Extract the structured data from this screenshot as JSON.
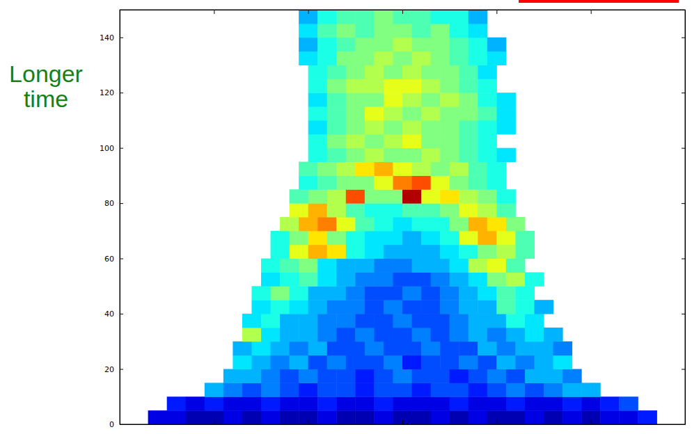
{
  "chart_data": {
    "type": "heatmap",
    "ylabel": "Longer time",
    "xlim": [
      0,
      6
    ],
    "xticks": [
      1,
      2,
      3,
      4,
      5
    ],
    "ylim": [
      0,
      150
    ],
    "yticks": [
      0,
      20,
      40,
      60,
      80,
      100,
      120,
      140
    ],
    "tick_labels": "y",
    "color_range": [
      0,
      10
    ],
    "dx": 0.2,
    "dy": 5,
    "rows": [
      {
        "y": 0,
        "x": 0.3,
        "values": [
          1,
          1,
          0.5,
          0.5,
          1,
          0.5,
          1,
          0.5,
          0.5,
          1,
          0.5,
          0.5,
          1,
          0.5,
          0.5,
          1,
          0.5,
          1,
          0.5,
          0.5,
          1,
          0.5,
          1,
          0.5,
          1,
          1,
          1.5
        ]
      },
      {
        "y": 5,
        "x": 0.5,
        "values": [
          1.5,
          1,
          1.5,
          1,
          1,
          1.5,
          1,
          1,
          1.5,
          1,
          1,
          1.5,
          1,
          1,
          1,
          1.5,
          1,
          1,
          1.5,
          1,
          1,
          1.5,
          1,
          1.5,
          2
        ]
      },
      {
        "y": 10,
        "x": 0.9,
        "values": [
          3,
          2.5,
          2,
          2.5,
          2,
          1.5,
          2,
          2,
          1.5,
          2,
          2,
          1.5,
          2,
          2,
          1.5,
          2,
          2.5,
          2,
          2.5,
          3,
          3
        ]
      },
      {
        "y": 15,
        "x": 1.1,
        "values": [
          3,
          3,
          2.5,
          2,
          2.5,
          2,
          2,
          1.5,
          2,
          2.5,
          2,
          2,
          1.5,
          2,
          2.5,
          2,
          3,
          3,
          2.5
        ]
      },
      {
        "y": 20,
        "x": 1.2,
        "values": [
          3.5,
          3,
          2.5,
          3,
          2,
          2.5,
          2,
          2,
          2.5,
          1.5,
          2,
          2,
          2.5,
          2,
          3,
          2.5,
          3,
          3.5
        ]
      },
      {
        "y": 25,
        "x": 1.2,
        "values": [
          3,
          3.5,
          3,
          2.5,
          3,
          2,
          2,
          2.5,
          2,
          2,
          2.5,
          2,
          2,
          3,
          2.5,
          3,
          3,
          2.5
        ]
      },
      {
        "y": 30,
        "x": 1.3,
        "values": [
          5.5,
          3.5,
          3,
          3,
          2.5,
          2,
          2.5,
          2,
          2,
          2.5,
          2,
          2.5,
          3,
          2.5,
          3,
          3.5,
          3
        ]
      },
      {
        "y": 35,
        "x": 1.3,
        "values": [
          3.5,
          4,
          3,
          3,
          2.5,
          2.5,
          2,
          2,
          2.5,
          2,
          2,
          2.5,
          3,
          3,
          4,
          3.5
        ]
      },
      {
        "y": 40,
        "x": 1.4,
        "values": [
          3.5,
          4,
          3.5,
          3,
          2.5,
          2.5,
          2,
          2.5,
          2,
          2,
          2.5,
          3,
          3,
          4.5,
          4,
          3
        ]
      },
      {
        "y": 45,
        "x": 1.4,
        "values": [
          4,
          5,
          4,
          3,
          3,
          2.5,
          2,
          2,
          2.5,
          2,
          2.5,
          3,
          3.5,
          4.5,
          4
        ]
      },
      {
        "y": 50,
        "x": 1.5,
        "values": [
          3.5,
          4,
          4.5,
          3.5,
          3,
          2.5,
          2.5,
          2,
          2,
          2.5,
          3,
          3.5,
          5,
          5.5,
          4
        ]
      },
      {
        "y": 55,
        "x": 1.5,
        "values": [
          4,
          4.5,
          5,
          3.5,
          3,
          3,
          2.5,
          2.5,
          3,
          3,
          3.5,
          5.5,
          6,
          4.5
        ]
      },
      {
        "y": 60,
        "x": 1.6,
        "values": [
          4,
          6,
          7,
          6.5,
          4,
          3.5,
          3,
          3,
          3,
          3.5,
          4,
          5,
          5.5,
          4.5
        ]
      },
      {
        "y": 65,
        "x": 1.6,
        "values": [
          4,
          5,
          6.5,
          5,
          4,
          3.5,
          3.5,
          3,
          3.5,
          4,
          6,
          7,
          6,
          4.5
        ]
      },
      {
        "y": 70,
        "x": 1.7,
        "values": [
          5.5,
          7,
          7.5,
          6,
          4.5,
          4,
          3.5,
          4,
          4,
          5,
          7,
          6.5,
          5
        ]
      },
      {
        "y": 75,
        "x": 1.8,
        "values": [
          6,
          7,
          5.5,
          4.5,
          4,
          4,
          4.5,
          4.5,
          5,
          6,
          5.5,
          4.5
        ]
      },
      {
        "y": 80,
        "x": 1.8,
        "values": [
          4.5,
          5,
          5.5,
          8,
          5,
          5,
          9.5,
          6,
          6.5,
          5.5,
          5,
          4
        ]
      },
      {
        "y": 85,
        "x": 1.9,
        "values": [
          4,
          4.5,
          5,
          5,
          6,
          7.5,
          8,
          6,
          5,
          4.5,
          4
        ]
      },
      {
        "y": 90,
        "x": 1.9,
        "values": [
          4.5,
          5,
          5.5,
          6.5,
          7,
          6,
          5.5,
          5,
          5.5,
          4.5,
          4
        ]
      },
      {
        "y": 95,
        "x": 2.0,
        "values": [
          4,
          4.5,
          5,
          5.5,
          5,
          5,
          5.5,
          5,
          4.5,
          4,
          3.5
        ]
      },
      {
        "y": 100,
        "x": 2.0,
        "values": [
          4,
          5,
          5.5,
          5,
          5.5,
          6,
          5,
          5,
          4.5,
          4
        ]
      },
      {
        "y": 105,
        "x": 2.0,
        "values": [
          3.5,
          4.5,
          5,
          5.5,
          5,
          5.5,
          5,
          5,
          4.5,
          4,
          3.5
        ]
      },
      {
        "y": 110,
        "x": 2.0,
        "values": [
          4,
          4.5,
          5,
          6,
          5.5,
          5,
          5.5,
          5,
          5,
          4.5,
          3.5
        ]
      },
      {
        "y": 115,
        "x": 2.0,
        "values": [
          3.5,
          4.5,
          5,
          5,
          6,
          5.5,
          5,
          5.5,
          5,
          4,
          3.5
        ]
      },
      {
        "y": 120,
        "x": 2.0,
        "values": [
          4,
          5,
          5.5,
          5.5,
          6,
          6,
          5.5,
          5,
          4.5,
          4
        ]
      },
      {
        "y": 125,
        "x": 2.0,
        "values": [
          4,
          4.5,
          5,
          5.5,
          5,
          5.5,
          5,
          5,
          4.5,
          3.5
        ]
      },
      {
        "y": 130,
        "x": 1.9,
        "values": [
          3.5,
          4,
          5,
          5,
          5.5,
          5,
          5.5,
          5,
          4.5,
          4,
          3.5
        ]
      },
      {
        "y": 135,
        "x": 1.9,
        "values": [
          3,
          4,
          4.5,
          5,
          5,
          5.5,
          5,
          5,
          4.5,
          4,
          3
        ]
      },
      {
        "y": 140,
        "x": 1.9,
        "values": [
          3.5,
          4.5,
          5,
          4.5,
          5,
          5,
          4.5,
          5,
          4,
          3.5
        ]
      },
      {
        "y": 145,
        "x": 1.9,
        "values": [
          3,
          4,
          4.5,
          4.5,
          5,
          4.5,
          4.5,
          4,
          4,
          3
        ]
      }
    ]
  }
}
